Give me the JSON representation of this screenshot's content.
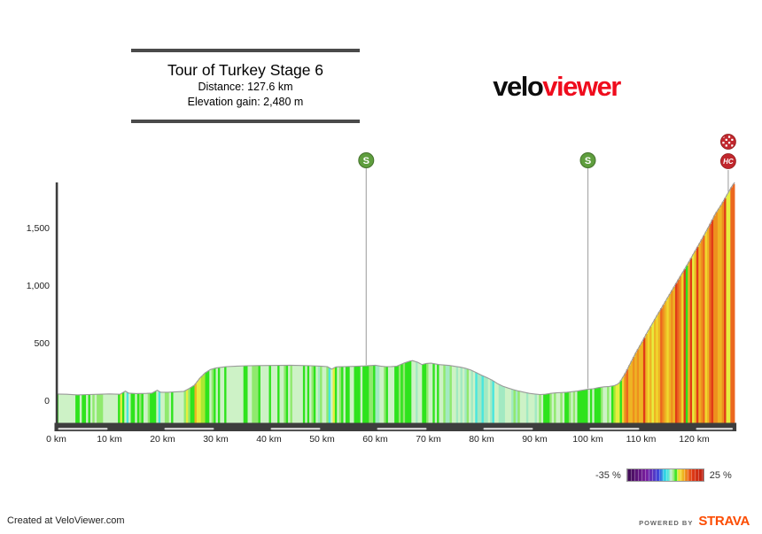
{
  "title_box": {
    "title": "Tour of Turkey Stage 6",
    "distance_label": "Distance: 127.6 km",
    "elevation_label": "Elevation gain: 2,480 m"
  },
  "logo": {
    "part1": "velo",
    "part2": "viewer",
    "part2_color": "#ef0c1d"
  },
  "legend": {
    "min_label": "-35 %",
    "max_label": "25 %"
  },
  "footer": {
    "created_at": "Created at VeloViewer.com",
    "powered_by": "POWERED BY",
    "strava": "STRAVA",
    "strava_color": "#fc4c02"
  },
  "chart_data": {
    "type": "area",
    "title": "Tour of Turkey Stage 6 elevation profile",
    "x_unit": "km",
    "y_unit": "m",
    "x_range": [
      0,
      127.6
    ],
    "y_range_shown": [
      0,
      1900
    ],
    "distance_km": 127.6,
    "elevation_gain_m": 2480,
    "max_elevation_m": 1900,
    "x_ticks": [
      {
        "value": 0,
        "label": "0 km"
      },
      {
        "value": 10,
        "label": "10 km"
      },
      {
        "value": 20,
        "label": "20 km"
      },
      {
        "value": 30,
        "label": "30 km"
      },
      {
        "value": 40,
        "label": "40 km"
      },
      {
        "value": 50,
        "label": "50 km"
      },
      {
        "value": 60,
        "label": "60 km"
      },
      {
        "value": 70,
        "label": "70 km"
      },
      {
        "value": 80,
        "label": "80 km"
      },
      {
        "value": 90,
        "label": "90 km"
      },
      {
        "value": 100,
        "label": "100 km"
      },
      {
        "value": 110,
        "label": "110 km"
      },
      {
        "value": 120,
        "label": "120 km"
      }
    ],
    "y_ticks": [
      {
        "value": 0,
        "label": "0"
      },
      {
        "value": 500,
        "label": "500"
      },
      {
        "value": 1000,
        "label": "1,000"
      },
      {
        "value": 1500,
        "label": "1,500"
      }
    ],
    "profile": [
      [
        0,
        62
      ],
      [
        2,
        60
      ],
      [
        4,
        55
      ],
      [
        6,
        58
      ],
      [
        8,
        60
      ],
      [
        10,
        63
      ],
      [
        12,
        60
      ],
      [
        13,
        88
      ],
      [
        13.6,
        70
      ],
      [
        15,
        66
      ],
      [
        17,
        68
      ],
      [
        18,
        70
      ],
      [
        19,
        95
      ],
      [
        19.6,
        78
      ],
      [
        21,
        78
      ],
      [
        23,
        82
      ],
      [
        24,
        85
      ],
      [
        25,
        110
      ],
      [
        26,
        140
      ],
      [
        27,
        200
      ],
      [
        28,
        245
      ],
      [
        29,
        275
      ],
      [
        30,
        288
      ],
      [
        32,
        300
      ],
      [
        34,
        305
      ],
      [
        36,
        308
      ],
      [
        38,
        309
      ],
      [
        40,
        310
      ],
      [
        42,
        311
      ],
      [
        44,
        312
      ],
      [
        46,
        310
      ],
      [
        48,
        308
      ],
      [
        50,
        303
      ],
      [
        51,
        300
      ],
      [
        51.8,
        278
      ],
      [
        52.6,
        298
      ],
      [
        54,
        300
      ],
      [
        56,
        302
      ],
      [
        58,
        306
      ],
      [
        60,
        312
      ],
      [
        61,
        305
      ],
      [
        62,
        300
      ],
      [
        63,
        301
      ],
      [
        64,
        303
      ],
      [
        65.5,
        332
      ],
      [
        66.5,
        348
      ],
      [
        67,
        352
      ],
      [
        68,
        338
      ],
      [
        68.8,
        318
      ],
      [
        69.6,
        328
      ],
      [
        70.5,
        330
      ],
      [
        72,
        318
      ],
      [
        74,
        310
      ],
      [
        75,
        302
      ],
      [
        76,
        295
      ],
      [
        77,
        285
      ],
      [
        78,
        270
      ],
      [
        79,
        248
      ],
      [
        80,
        225
      ],
      [
        81,
        205
      ],
      [
        82,
        182
      ],
      [
        83,
        152
      ],
      [
        84,
        130
      ],
      [
        85,
        114
      ],
      [
        86,
        100
      ],
      [
        87,
        88
      ],
      [
        88,
        78
      ],
      [
        89,
        68
      ],
      [
        90,
        62
      ],
      [
        91,
        58
      ],
      [
        92,
        60
      ],
      [
        93,
        68
      ],
      [
        94,
        72
      ],
      [
        95,
        75
      ],
      [
        96,
        78
      ],
      [
        97,
        82
      ],
      [
        98,
        88
      ],
      [
        99,
        95
      ],
      [
        100,
        103
      ],
      [
        101,
        108
      ],
      [
        102,
        118
      ],
      [
        103,
        125
      ],
      [
        104,
        128
      ],
      [
        105,
        135
      ],
      [
        105.6,
        148
      ],
      [
        106,
        165
      ],
      [
        107,
        240
      ],
      [
        108,
        330
      ],
      [
        109,
        420
      ],
      [
        110,
        500
      ],
      [
        111,
        585
      ],
      [
        112,
        665
      ],
      [
        113,
        745
      ],
      [
        114,
        822
      ],
      [
        115,
        900
      ],
      [
        116,
        978
      ],
      [
        117,
        1056
      ],
      [
        118,
        1132
      ],
      [
        119,
        1210
      ],
      [
        120,
        1292
      ],
      [
        121,
        1372
      ],
      [
        122,
        1455
      ],
      [
        123,
        1540
      ],
      [
        124,
        1630
      ],
      [
        125,
        1700
      ],
      [
        126,
        1780
      ],
      [
        127,
        1860
      ],
      [
        127.6,
        1900
      ]
    ],
    "markers": [
      {
        "km": 58.3,
        "type": "sprint",
        "label": "S"
      },
      {
        "km": 100,
        "type": "sprint",
        "label": "S"
      },
      {
        "km": 126.4,
        "type": "finish_hc",
        "label": "HC"
      }
    ],
    "marker_colors": {
      "sprint": "#5f9e3e",
      "sprint_rim": "#44722c",
      "climb": "#c1272d",
      "climb_rim": "#8e1a1a"
    },
    "legend_range_pct": [
      -35,
      25
    ],
    "gradient_scale": [
      [
        -20,
        "#7b1fa2"
      ],
      [
        -10,
        "#3b49dd"
      ],
      [
        -6,
        "#2fd0e6"
      ],
      [
        -3,
        "#4ae6de"
      ],
      [
        -1.2,
        "#a2e9c2"
      ],
      [
        0.4,
        "#cdf2c6"
      ],
      [
        0.9,
        "#90e96e"
      ],
      [
        3.5,
        "#2ee31d"
      ],
      [
        4.3,
        "#a9e832"
      ],
      [
        5.2,
        "#e7ee3f"
      ],
      [
        6.5,
        "#f0d82e"
      ],
      [
        9,
        "#eeb424"
      ],
      [
        11,
        "#ee901e"
      ],
      [
        13,
        "#ec671f"
      ],
      [
        16,
        "#e03c17"
      ],
      [
        99,
        "#bb1d10"
      ]
    ]
  }
}
